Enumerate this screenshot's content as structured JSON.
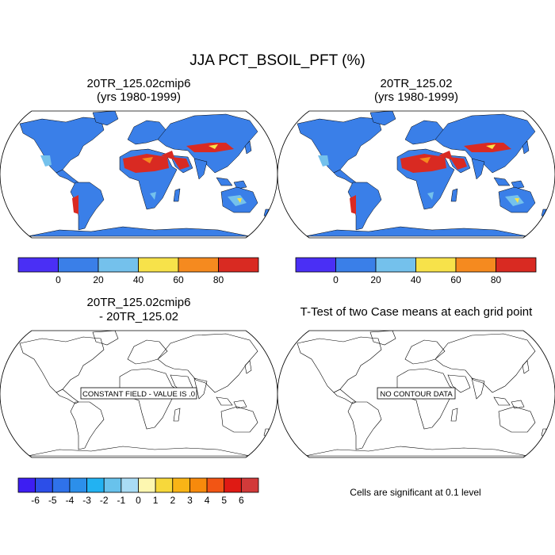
{
  "figure": {
    "title": "JJA PCT_BSOIL_PFT (%)"
  },
  "panels": [
    {
      "title_line1": "20TR_125.02cmip6",
      "title_line2": "(yrs 1980-1999)"
    },
    {
      "title_line1": "20TR_125.02",
      "title_line2": "(yrs 1980-1999)"
    },
    {
      "title_line1": "20TR_125.02cmip6",
      "title_line2": "- 20TR_125.02",
      "message": "CONSTANT FIELD - VALUE IS .0"
    },
    {
      "title_line1": "T-Test of two Case means at each grid point",
      "message": "NO CONTOUR DATA",
      "footnote": "Cells are significant at 0.1 level"
    }
  ],
  "colorbars": {
    "absolute": {
      "labels": [
        "0",
        "20",
        "40",
        "60",
        "80"
      ],
      "colors": [
        "#4a2ff5",
        "#3a7fe8",
        "#74c1ec",
        "#f7e24a",
        "#f58a1f",
        "#d92a22"
      ]
    },
    "difference": {
      "labels": [
        "-6",
        "-5",
        "-4",
        "-3",
        "-2",
        "-1",
        "0",
        "1",
        "2",
        "3",
        "4",
        "5",
        "6"
      ],
      "colors": [
        "#3d1ef2",
        "#2c4ee8",
        "#2f72ea",
        "#2c8fea",
        "#22b2f2",
        "#68c2ec",
        "#a9dcf5",
        "#fdf7b0",
        "#f7d83b",
        "#f9b416",
        "#f78a0c",
        "#f25514",
        "#df1a14",
        "#d23a3a"
      ]
    }
  },
  "map_colors": {
    "ocean": "#ffffff",
    "land_low": "#3a7fe8",
    "desert_high": "#d92a22",
    "semi_arid": "#f58a1f",
    "yellow": "#f7e24a",
    "light": "#74c1ec",
    "ice": "#3a7fe8"
  }
}
